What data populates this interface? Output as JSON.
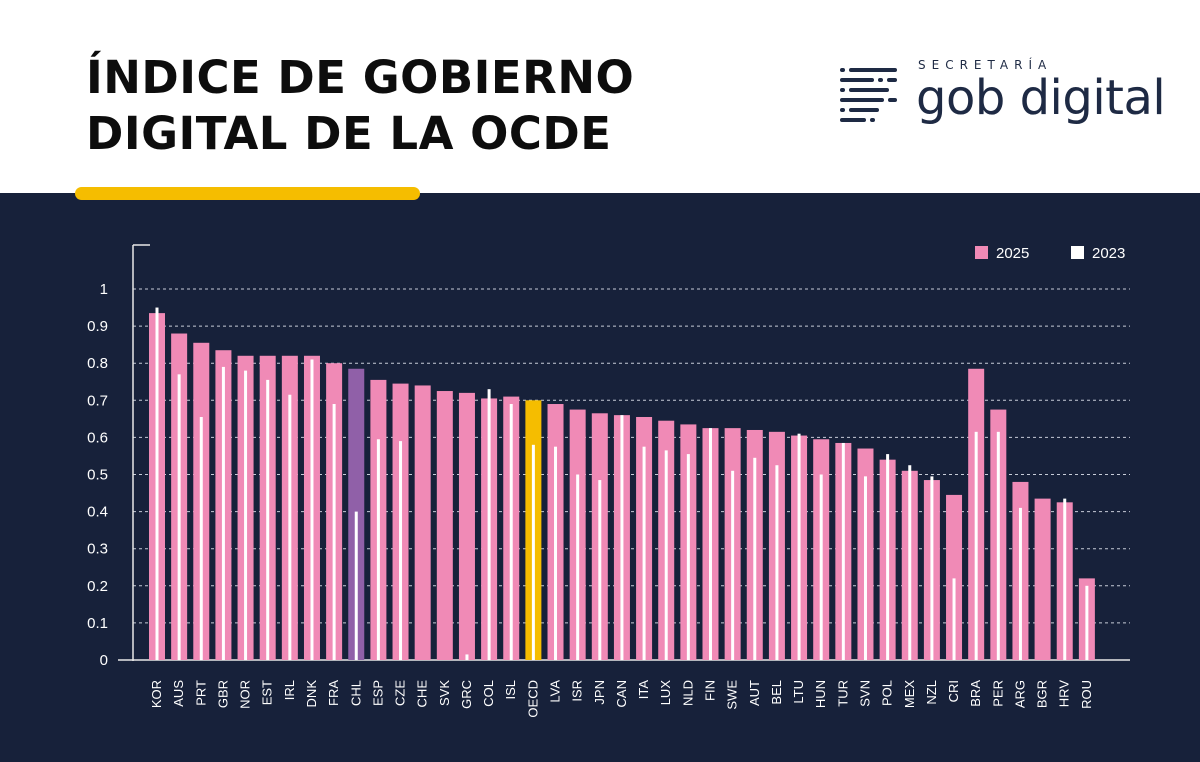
{
  "header": {
    "title_line1": "ÍNDICE DE GOBIERNO",
    "title_line2": "DIGITAL DE LA OCDE"
  },
  "logo": {
    "top_text": "SECRETARÍA",
    "main_text": "gob digital",
    "icon": "text-lines-icon"
  },
  "colors": {
    "panel_bg": "#17213a",
    "bar_2025": "#f08ab6",
    "bar_2023": "#ffffff",
    "highlight_chl": "#9060a8",
    "highlight_oecd": "#f5bd00",
    "accent_underline": "#f5bd00",
    "logo": "#1e2a44",
    "title": "#0d0d0d"
  },
  "chart_data": {
    "type": "bar",
    "title": "ÍNDICE DE GOBIERNO DIGITAL DE LA OCDE",
    "xlabel": "",
    "ylabel": "",
    "ylim": [
      0,
      1.05
    ],
    "yticks": [
      0,
      0.1,
      0.2,
      0.3,
      0.4,
      0.5,
      0.6,
      0.7,
      0.8,
      0.9,
      1
    ],
    "ytick_labels": [
      "0",
      "0.1",
      "0.2",
      "0.3",
      "0.4",
      "0.5",
      "0.6",
      "0.7",
      "0.8",
      "0.9",
      "1"
    ],
    "grid": true,
    "legend_position": "top-right",
    "categories": [
      "KOR",
      "AUS",
      "PRT",
      "GBR",
      "NOR",
      "EST",
      "IRL",
      "DNK",
      "FRA",
      "CHL",
      "ESP",
      "CZE",
      "CHE",
      "SVK",
      "GRC",
      "COL",
      "ISL",
      "OECD",
      "LVA",
      "ISR",
      "JPN",
      "CAN",
      "ITA",
      "LUX",
      "NLD",
      "FIN",
      "SWE",
      "AUT",
      "BEL",
      "LTU",
      "HUN",
      "TUR",
      "SVN",
      "POL",
      "MEX",
      "NZL",
      "CRI",
      "BRA",
      "PER",
      "ARG",
      "BGR",
      "HRV",
      "ROU"
    ],
    "highlight": {
      "CHL": "#9060a8",
      "OECD": "#f5bd00"
    },
    "series": [
      {
        "name": "2025",
        "values": [
          0.935,
          0.88,
          0.855,
          0.835,
          0.82,
          0.82,
          0.82,
          0.82,
          0.8,
          0.785,
          0.755,
          0.745,
          0.74,
          0.725,
          0.72,
          0.705,
          0.71,
          0.7,
          0.69,
          0.675,
          0.665,
          0.66,
          0.655,
          0.645,
          0.635,
          0.625,
          0.625,
          0.62,
          0.615,
          0.605,
          0.595,
          0.585,
          0.57,
          0.54,
          0.51,
          0.485,
          0.445,
          0.785,
          0.675,
          0.48,
          0.435,
          0.425,
          0.22
        ]
      },
      {
        "name": "2023",
        "values": [
          0.95,
          0.77,
          0.655,
          0.79,
          0.78,
          0.755,
          0.715,
          0.81,
          0.69,
          0.4,
          0.595,
          0.59,
          0.0,
          0.0,
          0.015,
          0.73,
          0.69,
          0.58,
          0.575,
          0.5,
          0.485,
          0.66,
          0.575,
          0.565,
          0.555,
          0.625,
          0.51,
          0.545,
          0.525,
          0.61,
          0.5,
          0.585,
          0.495,
          0.555,
          0.525,
          0.495,
          0.22,
          0.615,
          0.615,
          0.41,
          0.0,
          0.435,
          0.2
        ]
      }
    ]
  }
}
